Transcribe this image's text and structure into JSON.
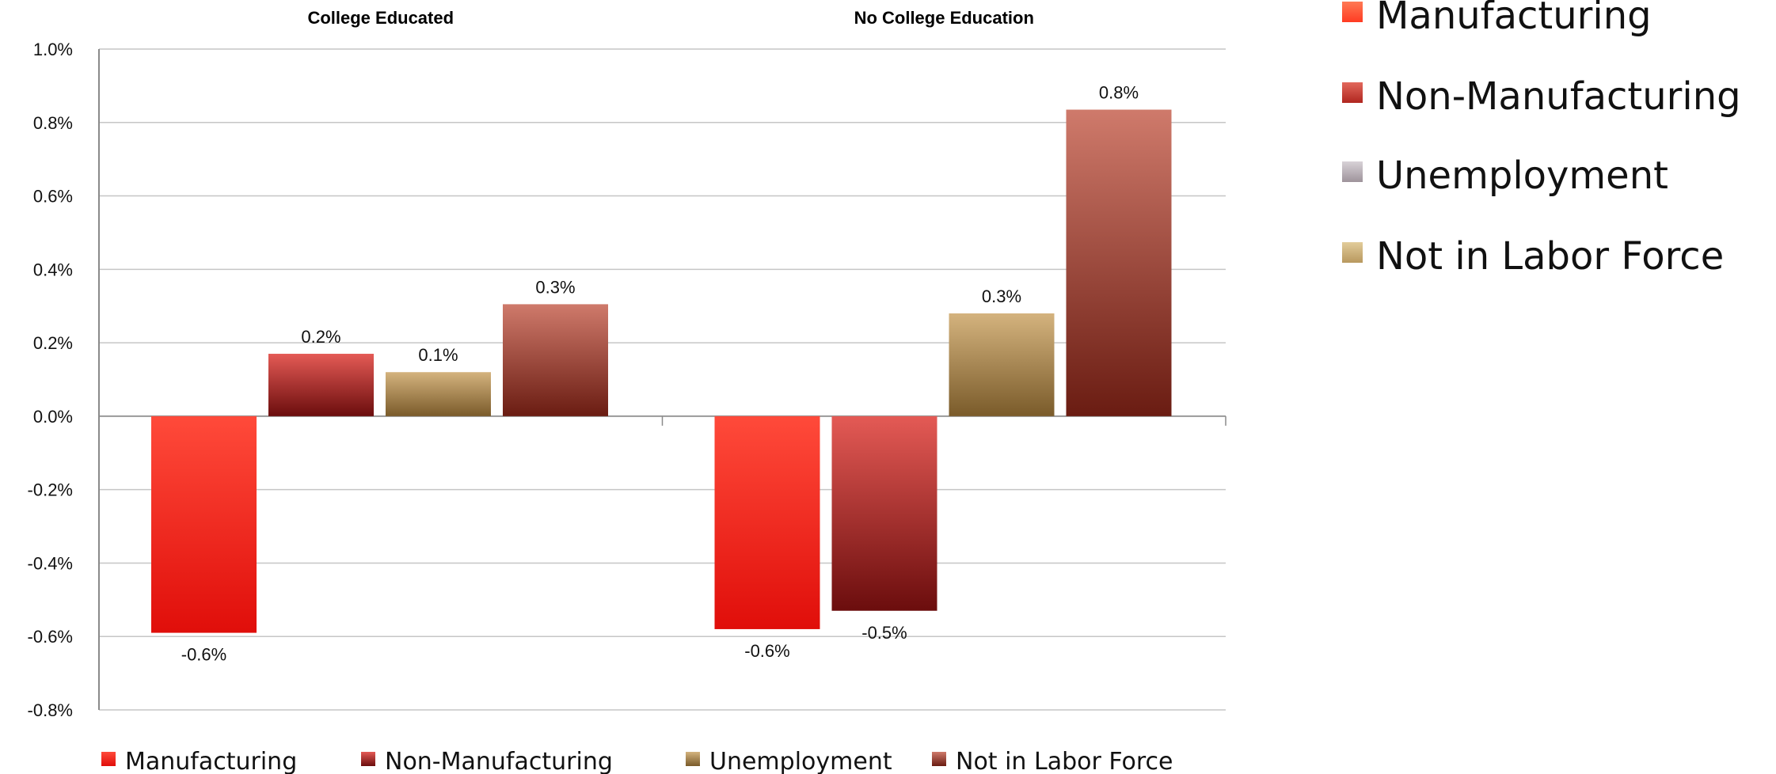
{
  "chart_data": {
    "type": "bar",
    "groups": [
      "College Educated",
      "No College Education"
    ],
    "series": [
      {
        "name": "Manufacturing",
        "values": [
          -0.59,
          -0.58
        ],
        "labels": [
          "-0.6%",
          "-0.6%"
        ],
        "color": "#e51f16"
      },
      {
        "name": "Non-Manufacturing",
        "values": [
          0.17,
          -0.53
        ],
        "labels": [
          "0.2%",
          "-0.5%"
        ],
        "color": "#a81c1c"
      },
      {
        "name": "Unemployment",
        "values": [
          0.12,
          0.28
        ],
        "labels": [
          "0.1%",
          "0.3%"
        ],
        "color": "#a87d45"
      },
      {
        "name": "Not in Labor Force",
        "values": [
          0.305,
          0.835
        ],
        "labels": [
          "0.3%",
          "0.8%"
        ],
        "color": "#a13d32"
      }
    ],
    "ylim": [
      -0.8,
      1.0
    ],
    "yticks": [
      "1.0%",
      "0.8%",
      "0.6%",
      "0.4%",
      "0.2%",
      "0.0%",
      "-0.2%",
      "-0.4%",
      "-0.6%",
      "-0.8%"
    ],
    "grid": true,
    "legend_bottom": [
      "Manufacturing",
      "Non-Manufacturing",
      "Unemployment",
      "Not in Labor Force"
    ],
    "legend_right": [
      {
        "label": "Manufacturing",
        "color": "#ff5a3c"
      },
      {
        "label": "Non-Manufacturing",
        "color": "#c73e33"
      },
      {
        "label": "Unemployment",
        "color": "#b9b2b8"
      },
      {
        "label": "Not in Labor Force",
        "color": "#c9b07a"
      }
    ]
  }
}
